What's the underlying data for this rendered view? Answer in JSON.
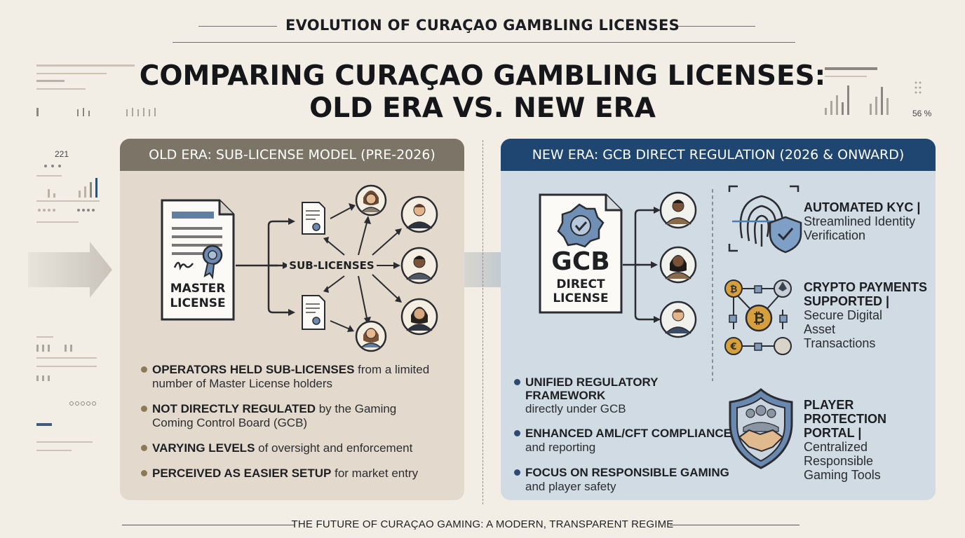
{
  "header": {
    "kicker": "EVOLUTION OF CURAÇAO GAMBLING LICENSES",
    "title_line1": "COMPARING CURAÇAO GAMBLING LICENSES:",
    "title_line2": "OLD ERA VS. NEW ERA"
  },
  "decor": {
    "left_number": "221",
    "right_percent": "56 %"
  },
  "old_era": {
    "heading": "OLD ERA: SUB-LICENSE MODEL (PRE-2026)",
    "master_line1": "MASTER",
    "master_line2": "LICENSE",
    "sub_label": "SUB-LICENSES",
    "bullets": [
      {
        "bold": "OPERATORS HELD SUB-LICENSES",
        "rest": " from a limited",
        "line2": "number of Master License holders"
      },
      {
        "bold": "NOT DIRECTLY REGULATED",
        "rest": " by the Gaming",
        "line2": "Coming Control Board (GCB)"
      },
      {
        "bold": "VARYING LEVELS",
        "rest": " of oversight and enforcement",
        "line2": ""
      },
      {
        "bold": "PERCEIVED AS EASIER SETUP",
        "rest": " for market entry",
        "line2": ""
      }
    ]
  },
  "new_era": {
    "heading": "NEW ERA: GCB DIRECT REGULATION (2026 & ONWARD)",
    "gcb": "GCB",
    "direct_line1": "DIRECT",
    "direct_line2": "LICENSE",
    "features": [
      {
        "title1": "AUTOMATED KYC |",
        "title2": "",
        "desc1": "Streamlined Identity",
        "desc2": "Verification",
        "desc3": "",
        "icon": "fingerprint-shield-icon"
      },
      {
        "title1": "CRYPTO PAYMENTS",
        "title2": "SUPPORTED |",
        "desc1": "Secure Digital",
        "desc2": "Asset",
        "desc3": "Transactions",
        "icon": "crypto-network-icon"
      },
      {
        "title1": "PLAYER PROTECTION",
        "title2": "PORTAL |",
        "desc1": "Centralized Responsible",
        "desc2": "Gaming Tools",
        "desc3": "",
        "icon": "handshake-shield-icon"
      }
    ],
    "bullets": [
      {
        "bold1": "UNIFIED REGULATORY",
        "bold2": "FRAMEWORK",
        "rest": "directly under GCB"
      },
      {
        "bold1": "ENHANCED AML/CFT COMPLIANCE",
        "bold2": "",
        "rest": "and reporting"
      },
      {
        "bold1": "FOCUS ON RESPONSIBLE GAMING",
        "bold2": "",
        "rest": "and player safety"
      }
    ]
  },
  "footer": "THE FUTURE OF CURAÇAO GAMING: A MODERN, TRANSPARENT REGIME",
  "colors": {
    "old_header": "#7c7466",
    "new_header": "#1f4670",
    "background": "#f2eee6"
  }
}
